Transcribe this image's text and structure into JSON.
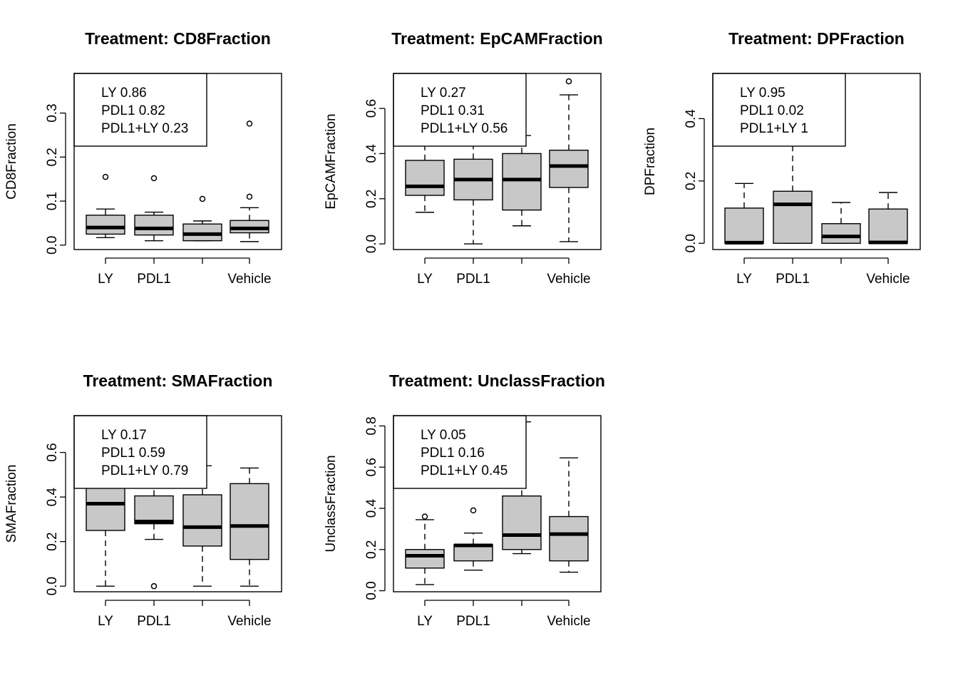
{
  "colors": {
    "box_fill": "#c8c8c8",
    "stroke": "#000000",
    "background": "#ffffff"
  },
  "chart_data": [
    {
      "type": "boxplot",
      "title": "Treatment: CD8Fraction",
      "xlabel": "",
      "ylabel": "CD8Fraction",
      "categories": [
        "LY",
        "PDL1",
        "PDL1+LY",
        "Vehicle"
      ],
      "category_labels_shown": [
        "LY",
        "PDL1",
        "",
        "Vehicle"
      ],
      "yticks": [
        0.0,
        0.1,
        0.2,
        0.3
      ],
      "ytick_labels": [
        "0.0",
        "0.1",
        "0.2",
        "0.3"
      ],
      "ylim": [
        -0.01,
        0.39
      ],
      "boxes": [
        {
          "whislo": 0.017,
          "q1": 0.025,
          "med": 0.04,
          "q3": 0.068,
          "whishi": 0.082,
          "outliers": [
            0.155
          ]
        },
        {
          "whislo": 0.01,
          "q1": 0.023,
          "med": 0.038,
          "q3": 0.068,
          "whishi": 0.075,
          "outliers": [
            0.152
          ]
        },
        {
          "whislo": 0.01,
          "q1": 0.01,
          "med": 0.025,
          "q3": 0.048,
          "whishi": 0.055,
          "outliers": [
            0.105
          ]
        },
        {
          "whislo": 0.008,
          "q1": 0.028,
          "med": 0.038,
          "q3": 0.056,
          "whishi": 0.085,
          "outliers": [
            0.11,
            0.276
          ]
        }
      ],
      "legend": [
        "LY 0.86",
        "PDL1 0.82",
        "PDL1+LY 0.23"
      ]
    },
    {
      "type": "boxplot",
      "title": "Treatment: EpCAMFraction",
      "xlabel": "",
      "ylabel": "EpCAMFraction",
      "categories": [
        "LY",
        "PDL1",
        "PDL1+LY",
        "Vehicle"
      ],
      "category_labels_shown": [
        "LY",
        "PDL1",
        "",
        "Vehicle"
      ],
      "yticks": [
        0.0,
        0.2,
        0.4,
        0.6
      ],
      "ytick_labels": [
        "0.0",
        "0.2",
        "0.4",
        "0.6"
      ],
      "ylim": [
        -0.025,
        0.755
      ],
      "boxes": [
        {
          "whislo": 0.14,
          "q1": 0.215,
          "med": 0.255,
          "q3": 0.37,
          "whishi": 0.44,
          "outliers": []
        },
        {
          "whislo": 0.0,
          "q1": 0.195,
          "med": 0.285,
          "q3": 0.375,
          "whishi": 0.46,
          "outliers": []
        },
        {
          "whislo": 0.08,
          "q1": 0.15,
          "med": 0.285,
          "q3": 0.4,
          "whishi": 0.48,
          "outliers": []
        },
        {
          "whislo": 0.01,
          "q1": 0.25,
          "med": 0.345,
          "q3": 0.415,
          "whishi": 0.66,
          "outliers": [
            0.72
          ]
        }
      ],
      "legend": [
        "LY 0.27",
        "PDL1 0.31",
        "PDL1+LY 0.56"
      ]
    },
    {
      "type": "boxplot",
      "title": "Treatment: DPFraction",
      "xlabel": "",
      "ylabel": "DPFraction",
      "categories": [
        "LY",
        "PDL1",
        "PDL1+LY",
        "Vehicle"
      ],
      "category_labels_shown": [
        "LY",
        "PDL1",
        "",
        "Vehicle"
      ],
      "yticks": [
        0.0,
        0.2,
        0.4
      ],
      "ytick_labels": [
        "0.0",
        "0.2",
        "0.4"
      ],
      "ylim": [
        -0.02,
        0.545
      ],
      "boxes": [
        {
          "whislo": 0.0,
          "q1": 0.0,
          "med": 0.002,
          "q3": 0.113,
          "whishi": 0.192,
          "outliers": []
        },
        {
          "whislo": 0.0,
          "q1": 0.0,
          "med": 0.125,
          "q3": 0.167,
          "whishi": 0.34,
          "outliers": []
        },
        {
          "whislo": 0.0,
          "q1": 0.0,
          "med": 0.022,
          "q3": 0.063,
          "whishi": 0.131,
          "outliers": []
        },
        {
          "whislo": 0.0,
          "q1": 0.0,
          "med": 0.003,
          "q3": 0.11,
          "whishi": 0.163,
          "outliers": []
        }
      ],
      "legend": [
        "LY 0.95",
        "PDL1 0.02",
        "PDL1+LY 1"
      ]
    },
    {
      "type": "boxplot",
      "title": "Treatment: SMAFraction",
      "xlabel": "",
      "ylabel": "SMAFraction",
      "categories": [
        "LY",
        "PDL1",
        "PDL1+LY",
        "Vehicle"
      ],
      "category_labels_shown": [
        "LY",
        "PDL1",
        "",
        "Vehicle"
      ],
      "yticks": [
        0.0,
        0.2,
        0.4,
        0.6
      ],
      "ytick_labels": [
        "0.0",
        "0.2",
        "0.4",
        "0.6"
      ],
      "ylim": [
        -0.025,
        0.765
      ],
      "boxes": [
        {
          "whislo": 0.0,
          "q1": 0.25,
          "med": 0.37,
          "q3": 0.46,
          "whishi": 0.5,
          "outliers": []
        },
        {
          "whislo": 0.21,
          "q1": 0.28,
          "med": 0.29,
          "q3": 0.405,
          "whishi": 0.52,
          "outliers": [
            0.0
          ]
        },
        {
          "whislo": 0.0,
          "q1": 0.18,
          "med": 0.265,
          "q3": 0.41,
          "whishi": 0.54,
          "outliers": []
        },
        {
          "whislo": 0.0,
          "q1": 0.12,
          "med": 0.27,
          "q3": 0.46,
          "whishi": 0.53,
          "outliers": []
        }
      ],
      "legend": [
        "LY 0.17",
        "PDL1 0.59",
        "PDL1+LY 0.79"
      ]
    },
    {
      "type": "boxplot",
      "title": "Treatment: UnclassFraction",
      "xlabel": "",
      "ylabel": "UnclassFraction",
      "categories": [
        "LY",
        "PDL1",
        "PDL1+LY",
        "Vehicle"
      ],
      "category_labels_shown": [
        "LY",
        "PDL1",
        "",
        "Vehicle"
      ],
      "yticks": [
        0.0,
        0.2,
        0.4,
        0.6,
        0.8
      ],
      "ytick_labels": [
        "0.0",
        "0.2",
        "0.4",
        "0.6",
        "0.8"
      ],
      "ylim": [
        -0.005,
        0.85
      ],
      "boxes": [
        {
          "whislo": 0.03,
          "q1": 0.11,
          "med": 0.17,
          "q3": 0.2,
          "whishi": 0.345,
          "outliers": [
            0.36
          ]
        },
        {
          "whislo": 0.1,
          "q1": 0.145,
          "med": 0.22,
          "q3": 0.225,
          "whishi": 0.28,
          "outliers": [
            0.39
          ]
        },
        {
          "whislo": 0.18,
          "q1": 0.2,
          "med": 0.27,
          "q3": 0.46,
          "whishi": 0.82,
          "outliers": []
        },
        {
          "whislo": 0.09,
          "q1": 0.145,
          "med": 0.275,
          "q3": 0.36,
          "whishi": 0.645,
          "outliers": []
        }
      ],
      "legend": [
        "LY 0.05",
        "PDL1 0.16",
        "PDL1+LY 0.45"
      ]
    }
  ]
}
